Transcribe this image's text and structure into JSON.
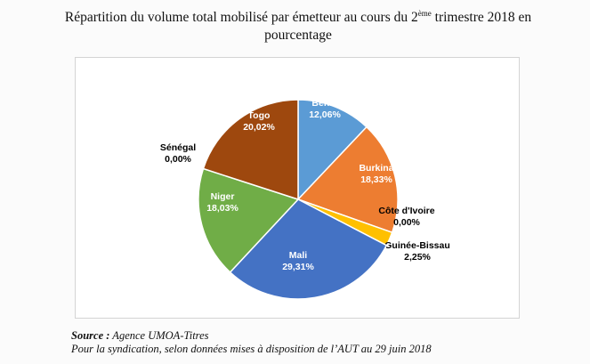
{
  "title": {
    "before_sup": "Répartition du volume total mobilisé par émetteur au cours du 2",
    "sup": "ème",
    "after_sup": " trimestre 2018 en",
    "line2": "pourcentage"
  },
  "source": {
    "label": "Source :",
    "text": " Agence UMOA-Titres",
    "note": "Pour la syndication, selon données mises à disposition de l’AUT au 29 juin 2018"
  },
  "chart_data": {
    "type": "pie",
    "title": "Répartition du volume total mobilisé par émetteur au cours du 2ème trimestre 2018 en pourcentage",
    "slices": [
      {
        "name": "Bénin",
        "value": 12.06,
        "label": "12,06%",
        "color": "#5b9bd5",
        "text_color": "#ffffff"
      },
      {
        "name": "Burkina",
        "value": 18.33,
        "label": "18,33%",
        "color": "#ed7d31",
        "text_color": "#ffffff"
      },
      {
        "name": "Côte d'Ivoire",
        "value": 0.0,
        "label": "0,00%",
        "color": "#a5a5a5",
        "text_color": "#000000"
      },
      {
        "name": "Guinée-Bissau",
        "value": 2.25,
        "label": "2,25%",
        "color": "#ffc000",
        "text_color": "#000000"
      },
      {
        "name": "Mali",
        "value": 29.31,
        "label": "29,31%",
        "color": "#4472c4",
        "text_color": "#ffffff"
      },
      {
        "name": "Niger",
        "value": 18.03,
        "label": "18,03%",
        "color": "#70ad47",
        "text_color": "#ffffff"
      },
      {
        "name": "Sénégal",
        "value": 0.0,
        "label": "0,00%",
        "color": "#255e91",
        "text_color": "#000000"
      },
      {
        "name": "Togo",
        "value": 20.02,
        "label": "20,02%",
        "color": "#9e480e",
        "text_color": "#ffffff"
      }
    ]
  }
}
